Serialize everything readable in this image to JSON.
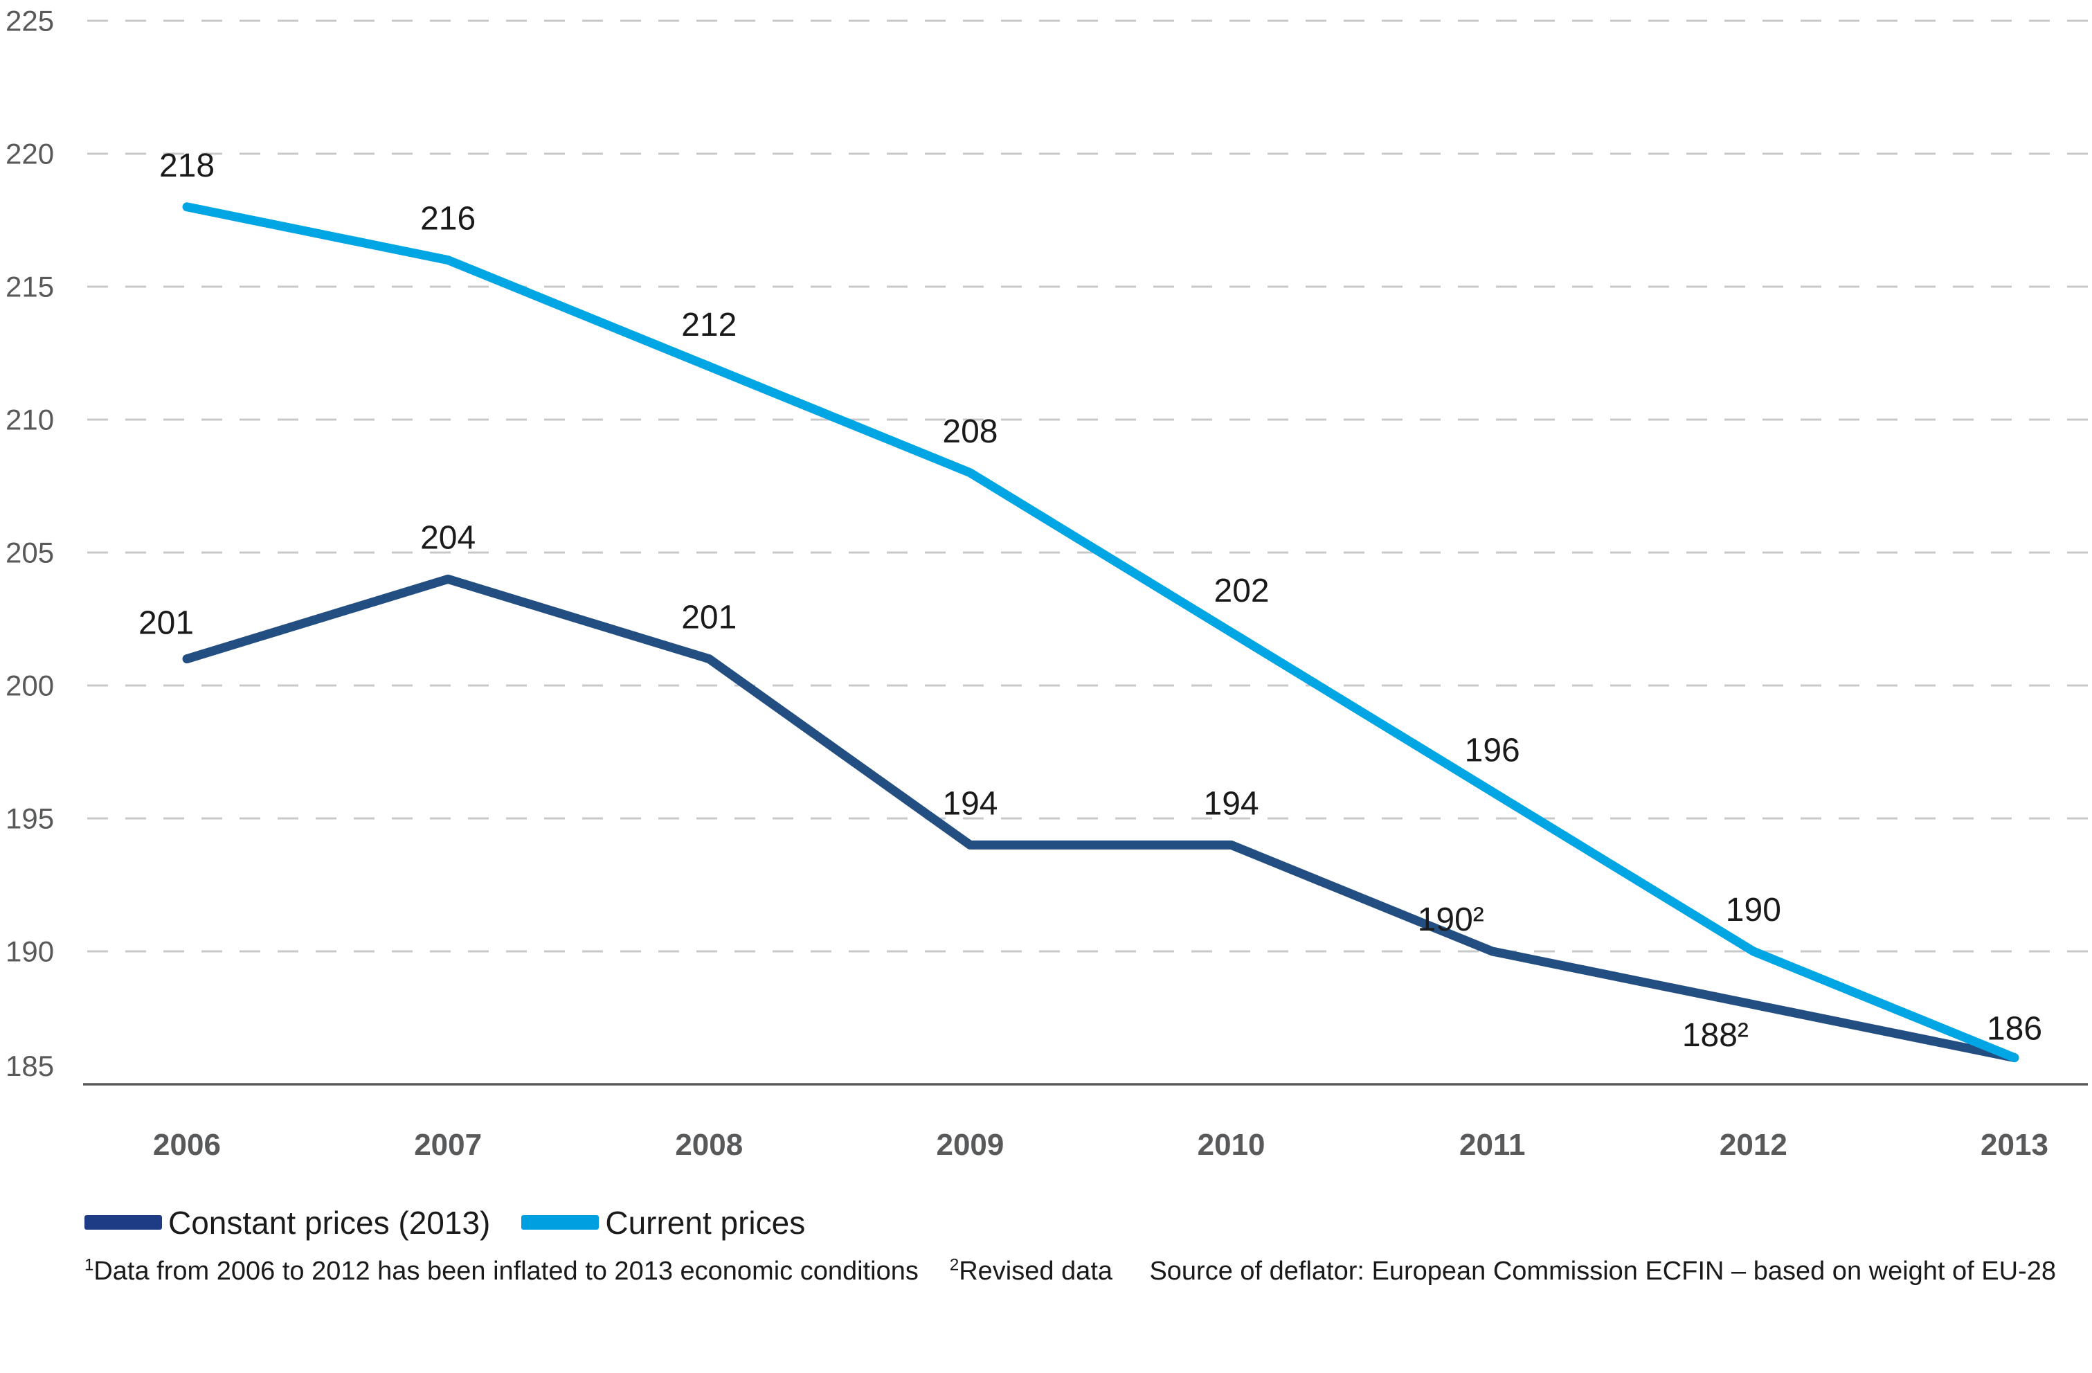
{
  "legend": {
    "items": [
      {
        "label": "Constant prices (2013)",
        "color": "#1E3C85"
      },
      {
        "label": "Current prices",
        "color": "#00A0E0"
      }
    ]
  },
  "footnotes": {
    "note1_sup": "1",
    "note1_text": "Data from 2006 to 2012 has been inflated to 2013 economic conditions",
    "note2_sup": "2",
    "note2_text": "Revised data",
    "source_text": "Source of deflator: European Commission ECFIN – based on weight of EU-28"
  },
  "chart_data": {
    "type": "line",
    "x": [
      "2006",
      "2007",
      "2008",
      "2009",
      "2010",
      "2011",
      "2012",
      "2013"
    ],
    "series": [
      {
        "name": "Constant prices (2013)",
        "color": "#234E81",
        "values": [
          201,
          204,
          201,
          194,
          194,
          190,
          188,
          186
        ],
        "point_labels": [
          "201",
          "204",
          "201",
          "194",
          "194",
          "190²",
          "188²",
          null
        ]
      },
      {
        "name": "Current prices",
        "color": "#00A5E3",
        "values": [
          218,
          216,
          212,
          208,
          202,
          196,
          190,
          186
        ],
        "point_labels": [
          "218",
          "216",
          "212",
          "208",
          "202",
          "196",
          "190",
          "186"
        ]
      }
    ],
    "ylim": [
      185,
      225
    ],
    "yticks": [
      185,
      190,
      195,
      200,
      205,
      210,
      215,
      220,
      225
    ],
    "ytick_step": 5,
    "grid": "horizontal-dashed",
    "legend_position": "bottom-left",
    "grid_color": "#C7C8CA",
    "axis_color": "#58595B",
    "tick_label_color": "#58595B",
    "data_label_color": "#1A1A1A"
  }
}
